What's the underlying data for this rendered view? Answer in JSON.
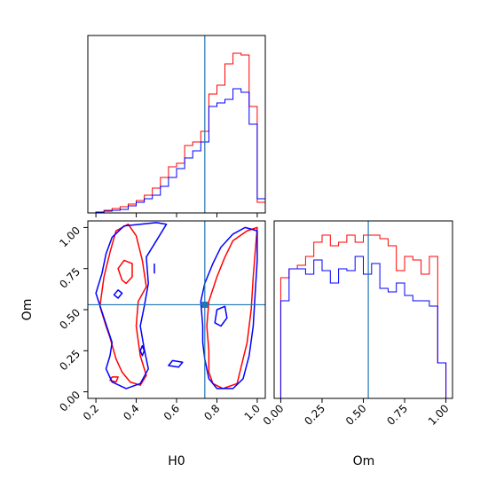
{
  "chart_data": {
    "type": "corner",
    "parameters": [
      "H0",
      "Om"
    ],
    "truths": {
      "H0": 0.74,
      "Om": 0.53
    },
    "colors": {
      "truth": "#1f77b4",
      "series_a": "#ff0000",
      "series_b": "#0000ff"
    },
    "xlabel_left": "H0",
    "xlabel_right": "Om",
    "ylabel": "Om",
    "h0_range": [
      0.16,
      1.04
    ],
    "om_range": [
      -0.04,
      1.04
    ],
    "h0_ticks": [
      "0.2",
      "0.4",
      "0.6",
      "0.8",
      "1.0"
    ],
    "om_ticks": [
      "0.00",
      "0.25",
      "0.50",
      "0.75",
      "1.00"
    ],
    "hist_h0": {
      "bin_edges": [
        0.16,
        0.2,
        0.24,
        0.28,
        0.32,
        0.36,
        0.4,
        0.44,
        0.48,
        0.52,
        0.56,
        0.6,
        0.64,
        0.68,
        0.72,
        0.76,
        0.8,
        0.84,
        0.88,
        0.92,
        0.96,
        1.0,
        1.04
      ],
      "series": [
        {
          "values": [
            0.0,
            0.005,
            0.015,
            0.025,
            0.035,
            0.05,
            0.07,
            0.1,
            0.14,
            0.2,
            0.26,
            0.28,
            0.38,
            0.4,
            0.46,
            0.67,
            0.72,
            0.84,
            0.9,
            0.89,
            0.6,
            0.06
          ]
        },
        {
          "values": [
            0.0,
            0.005,
            0.01,
            0.015,
            0.02,
            0.04,
            0.06,
            0.08,
            0.1,
            0.15,
            0.2,
            0.25,
            0.31,
            0.35,
            0.4,
            0.6,
            0.62,
            0.64,
            0.7,
            0.68,
            0.5,
            0.08
          ]
        }
      ]
    },
    "hist_om": {
      "bin_edges": [
        0.0,
        0.05,
        0.1,
        0.15,
        0.2,
        0.25,
        0.3,
        0.35,
        0.4,
        0.45,
        0.5,
        0.55,
        0.6,
        0.65,
        0.7,
        0.75,
        0.8,
        0.85,
        0.9,
        0.95,
        1.0
      ],
      "series": [
        {
          "values": [
            0.68,
            0.73,
            0.75,
            0.8,
            0.88,
            0.92,
            0.86,
            0.88,
            0.92,
            0.88,
            0.92,
            0.92,
            0.9,
            0.86,
            0.72,
            0.8,
            0.78,
            0.7,
            0.8,
            0.2
          ]
        },
        {
          "values": [
            0.55,
            0.73,
            0.73,
            0.7,
            0.78,
            0.72,
            0.65,
            0.73,
            0.72,
            0.8,
            0.7,
            0.76,
            0.62,
            0.6,
            0.65,
            0.58,
            0.55,
            0.55,
            0.52,
            0.2
          ]
        }
      ]
    },
    "contours": [
      {
        "series": 0,
        "points": [
          [
            0.27,
            0.33
          ],
          [
            0.25,
            0.4
          ],
          [
            0.22,
            0.52
          ],
          [
            0.24,
            0.7
          ],
          [
            0.27,
            0.85
          ],
          [
            0.3,
            0.98
          ],
          [
            0.36,
            1.02
          ],
          [
            0.4,
            0.95
          ],
          [
            0.43,
            0.8
          ],
          [
            0.45,
            0.64
          ],
          [
            0.41,
            0.55
          ],
          [
            0.4,
            0.4
          ],
          [
            0.42,
            0.22
          ],
          [
            0.45,
            0.1
          ],
          [
            0.42,
            0.04
          ],
          [
            0.37,
            0.06
          ],
          [
            0.33,
            0.12
          ],
          [
            0.3,
            0.2
          ]
        ]
      },
      {
        "series": 0,
        "points": [
          [
            0.76,
            0.25
          ],
          [
            0.75,
            0.4
          ],
          [
            0.76,
            0.55
          ],
          [
            0.8,
            0.7
          ],
          [
            0.84,
            0.82
          ],
          [
            0.88,
            0.92
          ],
          [
            0.95,
            0.98
          ],
          [
            1.0,
            1.0
          ],
          [
            0.99,
            0.85
          ],
          [
            0.98,
            0.7
          ],
          [
            0.97,
            0.5
          ],
          [
            0.95,
            0.3
          ],
          [
            0.92,
            0.15
          ],
          [
            0.9,
            0.05
          ],
          [
            0.83,
            0.02
          ],
          [
            0.78,
            0.05
          ],
          [
            0.76,
            0.12
          ]
        ]
      },
      {
        "series": 0,
        "points": [
          [
            0.33,
            0.68
          ],
          [
            0.31,
            0.75
          ],
          [
            0.34,
            0.8
          ],
          [
            0.38,
            0.78
          ],
          [
            0.38,
            0.7
          ],
          [
            0.35,
            0.66
          ]
        ]
      },
      {
        "series": 0,
        "points": [
          [
            0.28,
            0.09
          ],
          [
            0.27,
            0.07
          ],
          [
            0.3,
            0.06
          ],
          [
            0.31,
            0.09
          ]
        ]
      },
      {
        "series": 1,
        "points": [
          [
            0.28,
            0.3
          ],
          [
            0.24,
            0.45
          ],
          [
            0.2,
            0.6
          ],
          [
            0.23,
            0.72
          ],
          [
            0.25,
            0.84
          ],
          [
            0.28,
            0.94
          ],
          [
            0.34,
            1.01
          ],
          [
            0.42,
            1.02
          ],
          [
            0.5,
            1.03
          ],
          [
            0.55,
            1.02
          ],
          [
            0.5,
            0.92
          ],
          [
            0.45,
            0.82
          ],
          [
            0.46,
            0.66
          ],
          [
            0.44,
            0.52
          ],
          [
            0.42,
            0.4
          ],
          [
            0.44,
            0.26
          ],
          [
            0.46,
            0.14
          ],
          [
            0.42,
            0.05
          ],
          [
            0.35,
            0.02
          ],
          [
            0.28,
            0.06
          ],
          [
            0.25,
            0.14
          ],
          [
            0.27,
            0.22
          ]
        ]
      },
      {
        "series": 1,
        "points": [
          [
            0.73,
            0.4
          ],
          [
            0.72,
            0.55
          ],
          [
            0.74,
            0.66
          ],
          [
            0.78,
            0.78
          ],
          [
            0.82,
            0.88
          ],
          [
            0.88,
            0.96
          ],
          [
            0.94,
            1.0
          ],
          [
            1.0,
            0.98
          ],
          [
            1.0,
            0.8
          ],
          [
            0.99,
            0.6
          ],
          [
            0.98,
            0.4
          ],
          [
            0.96,
            0.22
          ],
          [
            0.93,
            0.08
          ],
          [
            0.88,
            0.02
          ],
          [
            0.8,
            0.02
          ],
          [
            0.76,
            0.08
          ],
          [
            0.74,
            0.2
          ],
          [
            0.73,
            0.3
          ]
        ]
      },
      {
        "series": 1,
        "points": [
          [
            0.79,
            0.42
          ],
          [
            0.8,
            0.5
          ],
          [
            0.84,
            0.52
          ],
          [
            0.85,
            0.45
          ],
          [
            0.82,
            0.4
          ]
        ]
      },
      {
        "series": 1,
        "points": [
          [
            0.56,
            0.16
          ],
          [
            0.61,
            0.15
          ],
          [
            0.63,
            0.18
          ],
          [
            0.58,
            0.19
          ]
        ]
      },
      {
        "series": 1,
        "points": [
          [
            0.29,
            0.59
          ],
          [
            0.31,
            0.62
          ],
          [
            0.33,
            0.6
          ],
          [
            0.31,
            0.57
          ]
        ]
      },
      {
        "series": 1,
        "points": [
          [
            0.42,
            0.25
          ],
          [
            0.43,
            0.28
          ],
          [
            0.44,
            0.25
          ],
          [
            0.43,
            0.22
          ]
        ]
      },
      {
        "series": 1,
        "points": [
          [
            0.49,
            0.72
          ],
          [
            0.49,
            0.78
          ]
        ]
      }
    ]
  }
}
